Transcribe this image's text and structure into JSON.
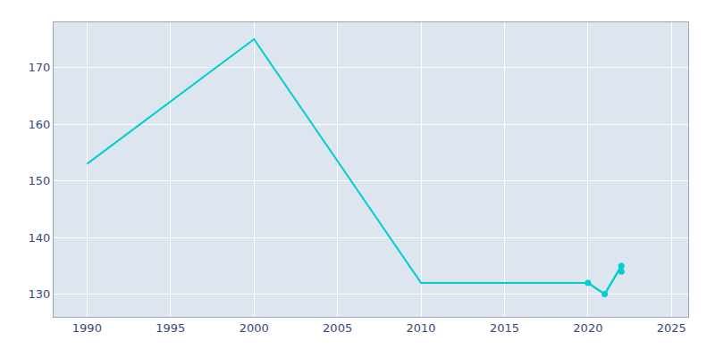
{
  "chart_data": {
    "type": "line",
    "x": [
      1990,
      2000,
      2010,
      2020,
      2021,
      2022,
      2022
    ],
    "series": [
      {
        "color": "#00CED1",
        "values": [
          153,
          175,
          132,
          132,
          130,
          135,
          134
        ]
      },
      {
        "color": "#00CED1",
        "marker": "circle",
        "values": [
          null,
          null,
          null,
          132,
          130,
          135,
          134
        ]
      }
    ],
    "xlim": [
      1988,
      2026
    ],
    "xticks": [
      1990,
      1995,
      2000,
      2005,
      2010,
      2015,
      2020,
      2025
    ],
    "ylim": [
      126,
      178
    ],
    "yticks": [
      130,
      140,
      150,
      160,
      170
    ],
    "grid": true
  }
}
